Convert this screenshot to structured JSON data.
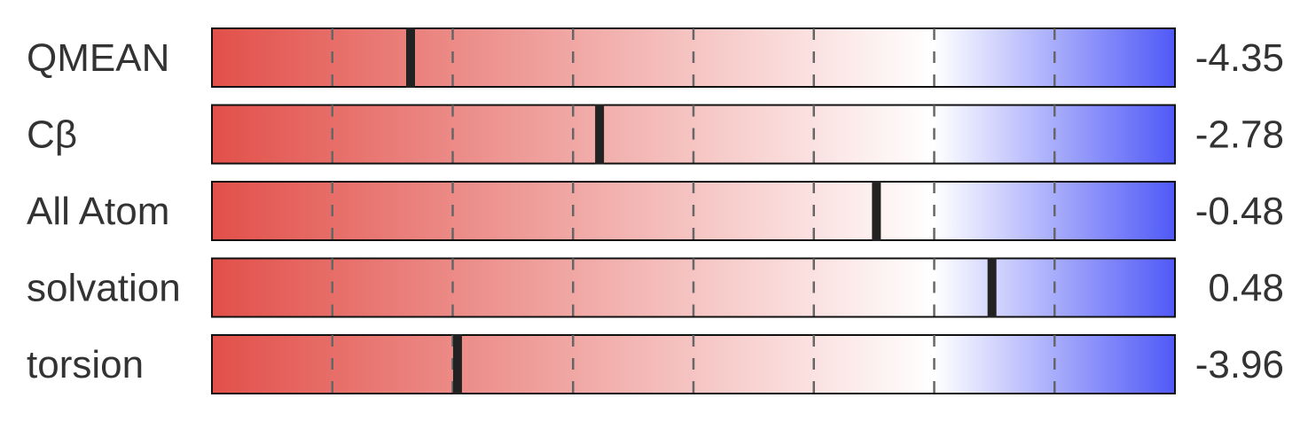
{
  "chart_data": {
    "type": "bar",
    "title": "",
    "xlim": [
      -4,
      4
    ],
    "tick_values": [
      -3,
      -2,
      -1,
      0,
      1,
      2,
      3
    ],
    "gradient_colors": {
      "low": "#e2504a",
      "mid": "#ffffff",
      "high": "#5059f7"
    },
    "marker_color": "#222222",
    "rows": [
      {
        "label": "QMEAN",
        "value": -4.35,
        "display": "-4.35",
        "marker": -2.35
      },
      {
        "label": "Cβ",
        "value": -2.78,
        "display": "-2.78",
        "marker": -0.78
      },
      {
        "label": "All Atom",
        "value": -0.48,
        "display": "-0.48",
        "marker": 1.52
      },
      {
        "label": "solvation",
        "value": 0.48,
        "display": "0.48",
        "marker": 2.48
      },
      {
        "label": "torsion",
        "value": -3.96,
        "display": "-3.96",
        "marker": -1.96
      }
    ]
  }
}
